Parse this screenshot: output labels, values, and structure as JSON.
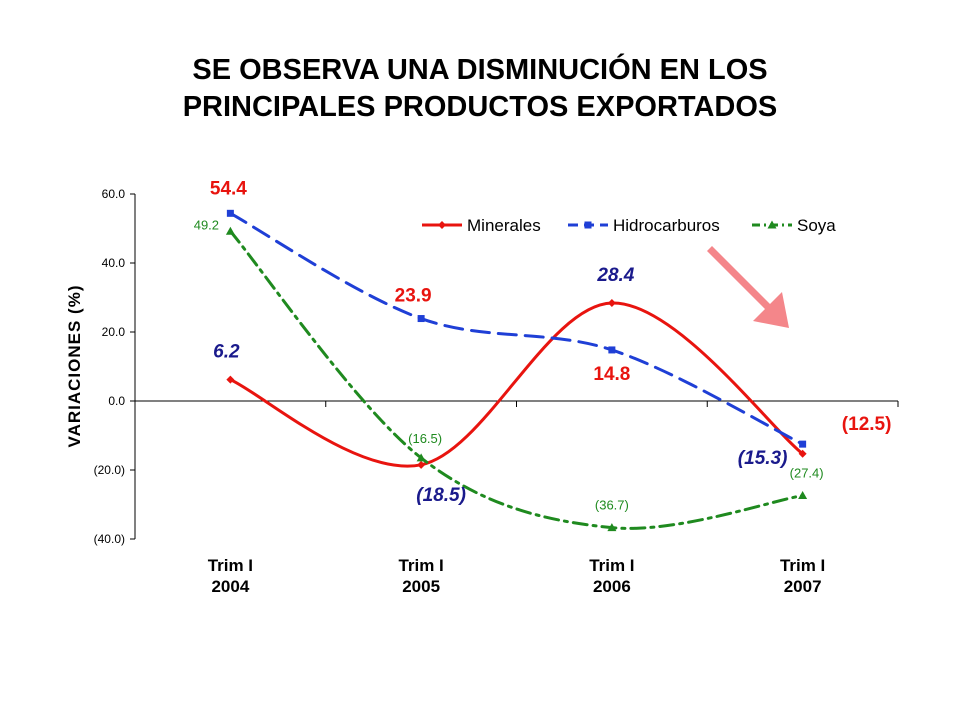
{
  "title_lines": [
    "SE OBSERVA  UNA DISMINUCIÓN  EN LOS",
    "PRINCIPALES  PRODUCTOS  EXPORTADOS"
  ],
  "chart_data": {
    "type": "line",
    "ylabel": "VARIACIONES (%)",
    "xlabel": "",
    "ylim": [
      -40,
      60
    ],
    "yticks": [
      {
        "value": 60,
        "label": "60.0"
      },
      {
        "value": 40,
        "label": "40.0"
      },
      {
        "value": 20,
        "label": "20.0"
      },
      {
        "value": 0,
        "label": "0.0"
      },
      {
        "value": -20,
        "label": "(20.0)"
      },
      {
        "value": -40,
        "label": "(40.0)"
      }
    ],
    "categories": [
      [
        "Trim I",
        "2004"
      ],
      [
        "Trim I",
        "2005"
      ],
      [
        "Trim I",
        "2006"
      ],
      [
        "Trim I",
        "2007"
      ]
    ],
    "legend_position": "top-right",
    "grid": false,
    "series": [
      {
        "name": "Minerales",
        "color": "#e8140f",
        "dash": "solid",
        "marker": "diamond",
        "values": [
          6.2,
          -18.5,
          28.4,
          -15.3
        ],
        "labels": [
          "6.2",
          "(18.5)",
          "28.4",
          "(15.3)"
        ],
        "label_color": "#1a1a8c"
      },
      {
        "name": "Hidrocarburos",
        "color": "#1f3fd6",
        "dash": "dashed",
        "marker": "square",
        "values": [
          54.4,
          23.9,
          14.8,
          -12.5
        ],
        "labels": [
          "54.4",
          "23.9",
          "14.8",
          "(12.5)"
        ],
        "label_color": "#e8140f"
      },
      {
        "name": "Soya",
        "color": "#1f8a1f",
        "dash": "dashdot",
        "marker": "triangle",
        "values": [
          49.2,
          -16.5,
          -36.7,
          -27.4
        ],
        "labels": [
          "49.2",
          "(16.5)",
          "(36.7)",
          "(27.4)"
        ],
        "label_color": "#1f8a1f"
      }
    ],
    "annotation": {
      "type": "arrow",
      "direction": "down-right",
      "color": "#f4868a"
    }
  }
}
